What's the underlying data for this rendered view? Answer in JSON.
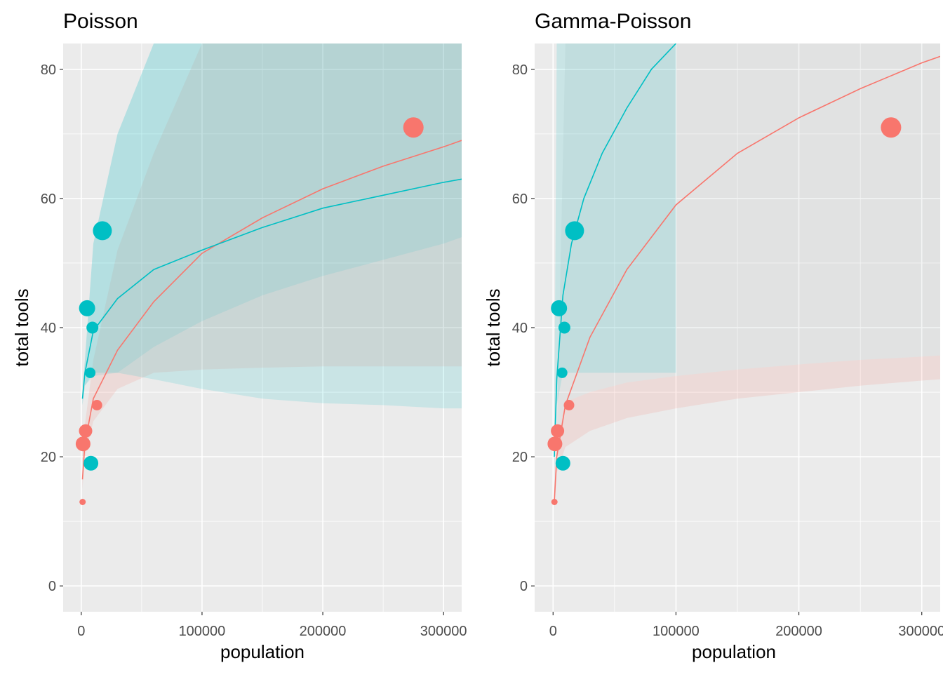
{
  "chart_data": [
    {
      "type": "scatter",
      "title": "Poisson",
      "xlabel": "population",
      "ylabel": "total tools",
      "xlim": [
        -15000,
        315000
      ],
      "ylim": [
        -4,
        84
      ],
      "x_ticks": [
        0,
        100000,
        200000,
        300000
      ],
      "x_tick_labels": [
        "0",
        "100000",
        "200000",
        "300000"
      ],
      "y_ticks": [
        0,
        20,
        40,
        60,
        80
      ],
      "y_tick_labels": [
        "0",
        "20",
        "40",
        "60",
        "80"
      ],
      "grid": true,
      "legend": "none",
      "colors": {
        "low_contact": "#F8766D",
        "high_contact": "#00BFC4",
        "panel_bg": "#EBEBEB",
        "grid": "#FFFFFF"
      },
      "points": [
        {
          "x": 1100,
          "y": 13,
          "size": 1,
          "group": "low_contact"
        },
        {
          "x": 1500,
          "y": 22,
          "size": 4,
          "group": "low_contact"
        },
        {
          "x": 3600,
          "y": 24,
          "size": 3.5,
          "group": "low_contact"
        },
        {
          "x": 4800,
          "y": 43,
          "size": 4.5,
          "group": "high_contact"
        },
        {
          "x": 7400,
          "y": 33,
          "size": 2.5,
          "group": "high_contact"
        },
        {
          "x": 8000,
          "y": 19,
          "size": 4,
          "group": "high_contact"
        },
        {
          "x": 9200,
          "y": 40,
          "size": 3,
          "group": "high_contact"
        },
        {
          "x": 13000,
          "y": 28,
          "size": 2.5,
          "group": "low_contact"
        },
        {
          "x": 17500,
          "y": 55,
          "size": 5.5,
          "group": "high_contact"
        },
        {
          "x": 275000,
          "y": 71,
          "size": 6,
          "group": "low_contact"
        }
      ],
      "series": [
        {
          "group": "low_contact",
          "x": [
            1000,
            3000,
            10000,
            30000,
            60000,
            100000,
            150000,
            200000,
            250000,
            300000,
            315000
          ],
          "y": [
            16.5,
            22,
            29,
            36.5,
            44,
            51.5,
            57,
            61.5,
            65,
            68,
            69
          ],
          "ymin": [
            15,
            20,
            25.5,
            30.5,
            33,
            33.5,
            33.8,
            34,
            34,
            34,
            34
          ],
          "ymax": [
            20,
            25,
            35,
            52,
            67,
            84,
            84,
            84,
            84,
            84,
            84
          ]
        },
        {
          "group": "high_contact",
          "x": [
            1000,
            3000,
            10000,
            30000,
            60000,
            100000,
            150000,
            200000,
            250000,
            300000,
            315000
          ],
          "y": [
            29,
            33,
            39.5,
            44.5,
            49,
            52,
            55.5,
            58.5,
            60.5,
            62.5,
            63
          ],
          "ymin": [
            28,
            31,
            33,
            33,
            32,
            30.5,
            29,
            28.3,
            28,
            27.5,
            27.5
          ],
          "ymax": [
            30,
            35,
            53,
            70,
            84,
            84,
            84,
            84,
            84,
            84,
            84
          ],
          "band_low": [
            28,
            31,
            32.5,
            33,
            37,
            41,
            45,
            48,
            50.5,
            53,
            54
          ]
        }
      ]
    },
    {
      "type": "scatter",
      "title": "Gamma-Poisson",
      "xlabel": "population",
      "ylabel": "total tools",
      "xlim": [
        -15000,
        315000
      ],
      "ylim": [
        -4,
        84
      ],
      "x_ticks": [
        0,
        100000,
        200000,
        300000
      ],
      "x_tick_labels": [
        "0",
        "100000",
        "200000",
        "300000"
      ],
      "y_ticks": [
        0,
        20,
        40,
        60,
        80
      ],
      "y_tick_labels": [
        "0",
        "20",
        "40",
        "60",
        "80"
      ],
      "grid": true,
      "legend": "none",
      "colors": {
        "low_contact": "#F8766D",
        "high_contact": "#00BFC4",
        "panel_bg": "#EBEBEB",
        "grid": "#FFFFFF"
      },
      "points": [
        {
          "x": 1100,
          "y": 13,
          "size": 1,
          "group": "low_contact"
        },
        {
          "x": 1500,
          "y": 22,
          "size": 4,
          "group": "low_contact"
        },
        {
          "x": 3600,
          "y": 24,
          "size": 3.5,
          "group": "low_contact"
        },
        {
          "x": 4800,
          "y": 43,
          "size": 4.5,
          "group": "high_contact"
        },
        {
          "x": 7400,
          "y": 33,
          "size": 2.5,
          "group": "high_contact"
        },
        {
          "x": 8000,
          "y": 19,
          "size": 4,
          "group": "high_contact"
        },
        {
          "x": 9200,
          "y": 40,
          "size": 3,
          "group": "high_contact"
        },
        {
          "x": 13000,
          "y": 28,
          "size": 2.5,
          "group": "low_contact"
        },
        {
          "x": 17500,
          "y": 55,
          "size": 5.5,
          "group": "high_contact"
        },
        {
          "x": 275000,
          "y": 71,
          "size": 6,
          "group": "low_contact"
        }
      ],
      "series": [
        {
          "group": "low_contact",
          "x": [
            1000,
            3000,
            10000,
            30000,
            60000,
            100000,
            150000,
            200000,
            250000,
            300000,
            315000
          ],
          "y": [
            13,
            20,
            28,
            38.5,
            49,
            59,
            67,
            72.5,
            77,
            81,
            82
          ],
          "ymin": [
            12,
            17.5,
            21.5,
            24,
            26,
            27.5,
            29,
            30,
            31,
            31.8,
            32
          ],
          "ymax": [
            15,
            22.5,
            84,
            84,
            84,
            84,
            84,
            84,
            84,
            84,
            84
          ],
          "band_high": [
            15,
            22.5,
            28.5,
            30,
            31.5,
            32.5,
            33.5,
            34.3,
            35,
            35.5,
            35.7
          ]
        },
        {
          "group": "high_contact",
          "x": [
            1000,
            3000,
            8000,
            15000,
            25000,
            40000,
            60000,
            80000,
            100000
          ],
          "y": [
            20,
            32,
            45,
            53,
            60,
            67,
            74,
            80,
            84
          ],
          "ymin": [
            18,
            28,
            33,
            33,
            33,
            33,
            33,
            33,
            33
          ],
          "ymax": [
            24,
            84,
            84,
            84,
            84,
            84,
            84,
            84,
            84
          ]
        }
      ]
    }
  ]
}
